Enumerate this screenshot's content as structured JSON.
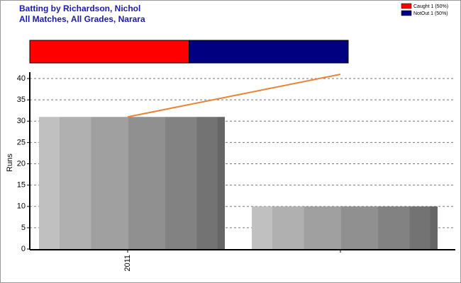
{
  "chart_data": {
    "type": "bar",
    "title": "Batting by Richardson, Nichol",
    "subtitle": "All Matches, All Grades, Narara",
    "y_label": "Runs",
    "categories": [
      "2011",
      null
    ],
    "values": [
      31,
      10
    ],
    "line": {
      "color": "#e8833a",
      "values": [
        31,
        41
      ]
    },
    "dismissals": [
      {
        "name": "Caught 1 (50%)",
        "value": 1,
        "color": "#ff0000"
      },
      {
        "name": "NotOut 1 (50%)",
        "value": 1,
        "color": "#000080"
      }
    ],
    "ylim": [
      0,
      41.5
    ],
    "yticks": [
      0,
      5,
      10,
      15,
      20,
      25,
      30,
      35,
      40
    ],
    "grid": true
  }
}
